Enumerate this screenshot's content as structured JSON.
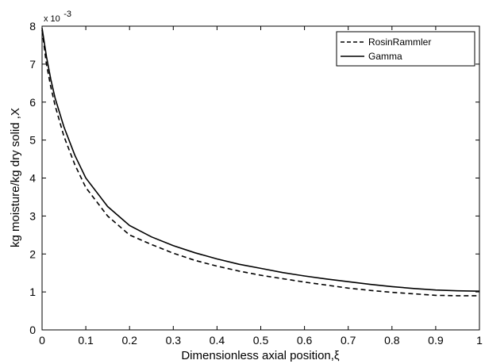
{
  "chart_data": {
    "type": "line",
    "title": "",
    "xlabel": "Dimensionless axial position,ξ",
    "ylabel": "kg moisture/kg dry solid ,X",
    "y_multiplier_label": "x 10",
    "y_multiplier_exponent": "-3",
    "xlim": [
      0,
      1
    ],
    "ylim": [
      0,
      8
    ],
    "x_ticks": [
      0,
      0.1,
      0.2,
      0.3,
      0.4,
      0.5,
      0.6,
      0.7,
      0.8,
      0.9,
      1
    ],
    "x_tick_labels": [
      "0",
      "0.1",
      "0.2",
      "0.3",
      "0.4",
      "0.5",
      "0.6",
      "0.7",
      "0.8",
      "0.9",
      "1"
    ],
    "y_ticks": [
      0,
      1,
      2,
      3,
      4,
      5,
      6,
      7,
      8
    ],
    "y_tick_labels": [
      "0",
      "1",
      "2",
      "3",
      "4",
      "5",
      "6",
      "7",
      "8"
    ],
    "grid": false,
    "legend_position": "top-right",
    "series": [
      {
        "name": "RosinRammler",
        "style": "dashed",
        "color": "#000000",
        "x": [
          0,
          0.01,
          0.02,
          0.03,
          0.05,
          0.075,
          0.1,
          0.15,
          0.2,
          0.25,
          0.3,
          0.35,
          0.4,
          0.45,
          0.5,
          0.55,
          0.6,
          0.65,
          0.7,
          0.75,
          0.8,
          0.85,
          0.9,
          0.95,
          1.0
        ],
        "y": [
          7.9,
          7.0,
          6.4,
          5.9,
          5.1,
          4.35,
          3.75,
          3.0,
          2.5,
          2.25,
          2.02,
          1.83,
          1.68,
          1.55,
          1.44,
          1.35,
          1.26,
          1.18,
          1.1,
          1.04,
          0.99,
          0.95,
          0.91,
          0.9,
          0.9
        ]
      },
      {
        "name": "Gamma",
        "style": "solid",
        "color": "#000000",
        "x": [
          0,
          0.01,
          0.02,
          0.03,
          0.05,
          0.075,
          0.1,
          0.15,
          0.2,
          0.25,
          0.3,
          0.35,
          0.4,
          0.45,
          0.5,
          0.55,
          0.6,
          0.65,
          0.7,
          0.75,
          0.8,
          0.85,
          0.9,
          0.95,
          1.0
        ],
        "y": [
          7.95,
          7.2,
          6.6,
          6.1,
          5.35,
          4.6,
          4.0,
          3.25,
          2.75,
          2.45,
          2.22,
          2.03,
          1.87,
          1.73,
          1.62,
          1.51,
          1.42,
          1.34,
          1.27,
          1.2,
          1.14,
          1.09,
          1.05,
          1.03,
          1.02
        ]
      }
    ]
  }
}
